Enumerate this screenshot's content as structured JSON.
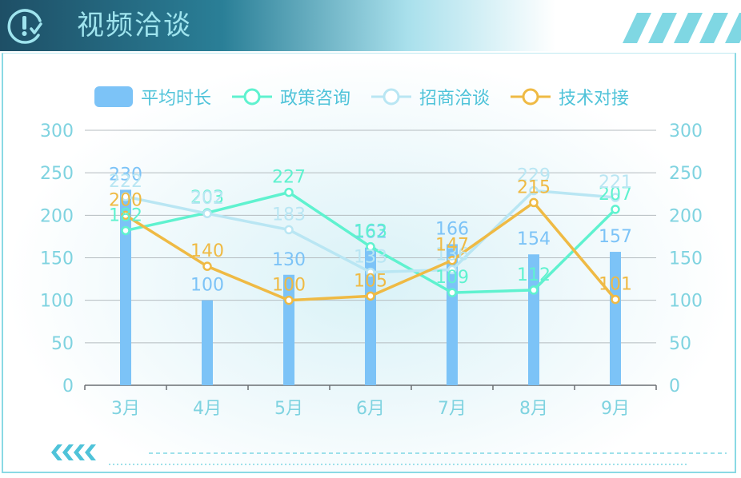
{
  "header": {
    "title": "视频洽谈",
    "icon": "alert-clock-icon"
  },
  "legend": {
    "items": [
      {
        "label": "平均时长",
        "color": "#7cc3f7",
        "kind": "bar"
      },
      {
        "label": "政策咨询",
        "color": "#5ff2cf",
        "kind": "line"
      },
      {
        "label": "招商洽谈",
        "color": "#b9e6f3",
        "kind": "line"
      },
      {
        "label": "技术对接",
        "color": "#efba44",
        "kind": "line"
      }
    ]
  },
  "chart_data": {
    "type": "bar",
    "categories": [
      "3月",
      "4月",
      "5月",
      "6月",
      "7月",
      "8月",
      "9月"
    ],
    "ylim": [
      0,
      300
    ],
    "y_ticks": [
      0,
      50,
      100,
      150,
      200,
      250,
      300
    ],
    "y2_ticks": [
      0,
      50,
      100,
      150,
      200,
      250,
      300
    ],
    "grid": true,
    "legend_position": "top",
    "series": [
      {
        "name": "平均时长",
        "kind": "bar",
        "color": "#7cc3f7",
        "label_color": "#7cc3f7",
        "values": [
          230,
          100,
          130,
          162,
          166,
          154,
          157
        ]
      },
      {
        "name": "政策咨询",
        "kind": "line",
        "color": "#5ff2cf",
        "label_color": "#5ff2cf",
        "values": [
          182,
          203,
          227,
          163,
          109,
          112,
          207
        ]
      },
      {
        "name": "招商洽谈",
        "kind": "line",
        "color": "#b9e6f3",
        "label_color": "#b9e6f3",
        "values": [
          222,
          202,
          183,
          133,
          136,
          229,
          221
        ]
      },
      {
        "name": "技术对接",
        "kind": "line",
        "color": "#efba44",
        "label_color": "#efba44",
        "values": [
          200,
          140,
          100,
          105,
          147,
          215,
          101
        ]
      }
    ]
  }
}
